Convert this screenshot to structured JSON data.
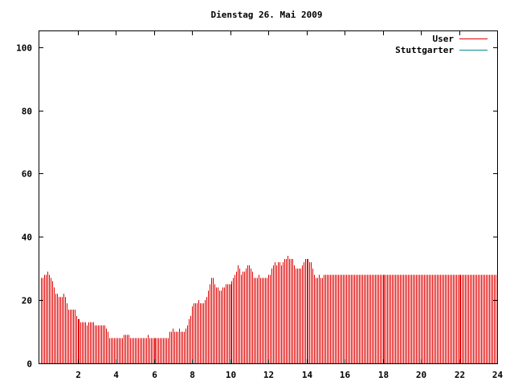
{
  "chart_data": {
    "type": "bar",
    "title": "Dienstag 26. Mai 2009",
    "xlabel": "",
    "ylabel": "",
    "xlim": [
      0,
      24
    ],
    "ylim": [
      0,
      105
    ],
    "x_ticks": [
      2,
      4,
      6,
      8,
      10,
      12,
      14,
      16,
      18,
      20,
      22,
      24
    ],
    "x_tick_labels": [
      "2",
      "4",
      "6",
      "8",
      "10",
      "12",
      "14",
      "16",
      "18",
      "20",
      "22",
      "24"
    ],
    "y_ticks": [
      0,
      20,
      40,
      60,
      80,
      100
    ],
    "y_tick_labels": [
      "0",
      "20",
      "40",
      "60",
      "80",
      "100"
    ],
    "grid": false,
    "legend_position": "top-right",
    "series": [
      {
        "name": "User",
        "color": "#e00000",
        "interval_minutes": 5,
        "x_start": 0,
        "values": [
          27,
          27,
          28,
          28,
          29,
          28,
          27,
          26,
          24,
          22,
          22,
          21,
          21,
          21,
          22,
          21,
          19,
          17,
          17,
          17,
          17,
          17,
          15,
          14,
          14,
          13,
          13,
          13,
          13,
          12,
          13,
          13,
          13,
          13,
          12,
          12,
          12,
          12,
          12,
          12,
          12,
          11,
          10,
          8,
          8,
          8,
          8,
          8,
          8,
          8,
          8,
          8,
          9,
          9,
          9,
          9,
          8,
          8,
          8,
          8,
          8,
          8,
          8,
          8,
          8,
          8,
          8,
          9,
          8,
          8,
          8,
          8,
          8,
          8,
          8,
          8,
          8,
          8,
          8,
          8,
          8,
          10,
          10,
          11,
          10,
          10,
          10,
          11,
          10,
          10,
          10,
          11,
          12,
          14,
          15,
          18,
          19,
          19,
          19,
          20,
          19,
          19,
          19,
          20,
          21,
          23,
          25,
          27,
          27,
          25,
          24,
          24,
          23,
          23,
          24,
          24,
          25,
          25,
          25,
          25,
          26,
          27,
          28,
          29,
          31,
          30,
          28,
          29,
          29,
          30,
          31,
          31,
          30,
          29,
          27,
          27,
          27,
          28,
          27,
          27,
          27,
          27,
          27,
          28,
          28,
          30,
          31,
          32,
          31,
          32,
          32,
          31,
          32,
          33,
          33,
          34,
          33,
          33,
          33,
          31,
          30,
          30,
          30,
          30,
          31,
          32,
          33,
          33,
          33,
          32,
          32,
          30,
          28,
          27,
          27,
          28,
          27,
          27,
          28,
          28,
          28,
          28,
          28,
          28,
          28,
          28,
          28,
          28,
          28,
          28,
          28,
          28,
          28,
          28,
          28,
          28,
          28,
          28,
          28,
          28,
          28,
          28,
          28,
          28,
          28,
          28,
          28,
          28,
          28,
          28,
          28,
          28,
          28,
          28,
          28,
          28,
          28,
          28,
          28,
          28,
          28,
          28,
          28,
          28,
          28,
          28,
          28,
          28,
          28,
          28,
          28,
          28,
          28,
          28,
          28,
          28,
          28,
          28,
          28,
          28,
          28,
          28,
          28,
          28,
          28,
          28,
          28,
          28,
          28,
          28,
          28,
          28,
          28,
          28,
          28,
          28,
          28,
          28,
          28,
          28,
          28,
          28,
          28,
          28,
          28,
          28,
          28,
          28,
          28,
          28,
          28,
          28,
          28,
          28,
          28,
          28,
          28,
          28,
          28,
          28,
          28,
          28,
          28,
          28,
          28,
          28,
          28,
          28
        ]
      },
      {
        "name": "Stuttgarter",
        "color": "#009090",
        "values": []
      }
    ]
  }
}
